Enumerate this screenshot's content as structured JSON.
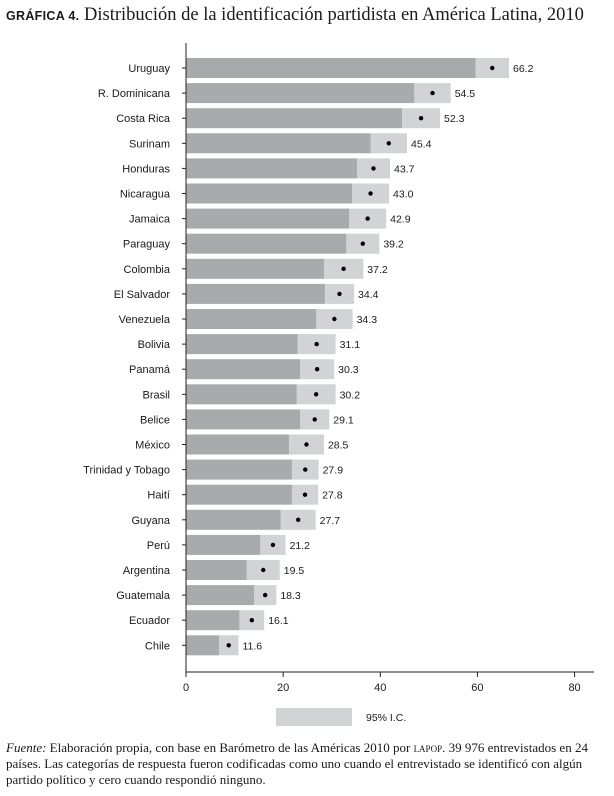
{
  "title": {
    "label": "GRÁFICA 4.",
    "text": "Distribución de la identificación partidista en América Latina, 2010"
  },
  "legend": {
    "label": "95% I.C."
  },
  "colors": {
    "bar": "#a9aaac",
    "ci": "#d2d3d5",
    "point": "#000000",
    "axis": "#222222"
  },
  "chart_data": {
    "type": "bar",
    "orientation": "horizontal",
    "categories": [
      "Uruguay",
      "R. Dominicana",
      "Costa Rica",
      "Surinam",
      "Honduras",
      "Nicaragua",
      "Jamaica",
      "Paraguay",
      "Colombia",
      "El Salvador",
      "Venezuela",
      "Bolivia",
      "Panamá",
      "Brasil",
      "Belice",
      "México",
      "Trinidad y Tobago",
      "Haití",
      "Guyana",
      "Perú",
      "Argentina",
      "Guatemala",
      "Ecuador",
      "Chile"
    ],
    "series": [
      {
        "values": [
          66.2,
          54.5,
          52.3,
          45.4,
          43.7,
          43.0,
          42.9,
          39.2,
          37.2,
          34.4,
          34.3,
          31.1,
          30.3,
          30.2,
          29.1,
          28.5,
          27.9,
          27.8,
          27.7,
          21.2,
          19.5,
          18.3,
          16.1,
          11.6
        ]
      },
      {
        "name": "95% I.C.",
        "type": "interval",
        "low": [
          59.6,
          47.0,
          44.5,
          38.0,
          35.2,
          34.2,
          33.6,
          33.0,
          28.4,
          28.6,
          26.8,
          23.0,
          23.5,
          22.8,
          23.5,
          21.2,
          21.8,
          21.8,
          19.5,
          15.3,
          12.5,
          14.0,
          11.0,
          6.8
        ],
        "high": [
          66.5,
          54.5,
          52.3,
          45.5,
          42.0,
          41.8,
          41.2,
          39.8,
          36.5,
          34.6,
          34.3,
          30.8,
          30.5,
          30.8,
          29.5,
          28.4,
          27.3,
          27.2,
          26.7,
          20.5,
          19.3,
          18.6,
          16.1,
          10.8
        ]
      }
    ],
    "data_labels": [
      "66.2",
      "54.5",
      "52.3",
      "45.4",
      "43.7",
      "43.0",
      "42.9",
      "39.2",
      "37.2",
      "34.4",
      "34.3",
      "31.1",
      "30.3",
      "30.2",
      "29.1",
      "28.5",
      "27.9",
      "27.8",
      "27.7",
      "21.2",
      "19.5",
      "18.3",
      "16.1",
      "11.6"
    ],
    "xlim": [
      0,
      84
    ],
    "xticks": [
      0,
      20,
      40,
      60,
      80
    ],
    "grid": false,
    "legend_position": "bottom"
  },
  "footnote": {
    "source_label": "Fuente:",
    "text1": " Elaboración propia, con base en Barómetro de las Américas 2010 por ",
    "org": "lapop",
    "text2": ". 39 976 entrevistados en 24 países. Las categorías de respuesta fueron codificadas como uno cuando el entrevistado se identificó con algún partido político y cero cuando respondió ninguno."
  }
}
